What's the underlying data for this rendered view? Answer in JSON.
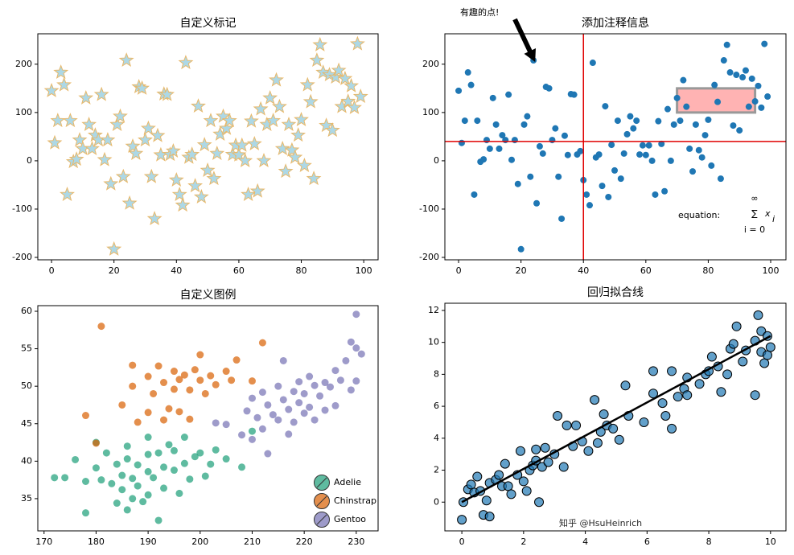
{
  "chart_data": [
    {
      "type": "scatter",
      "title": "自定义标记",
      "marker": "star",
      "xlim": [
        -4.4,
        104.6
      ],
      "ylim": [
        -205,
        263
      ],
      "xticks": [
        0,
        20,
        40,
        60,
        80,
        100
      ],
      "yticks": [
        -200,
        -100,
        0,
        100,
        200
      ],
      "series": [
        {
          "color": "#add8e6",
          "edgecolor": "#e8b86a",
          "alpha": 1,
          "x": [
            0,
            1,
            2,
            3,
            4,
            5,
            6,
            7,
            8,
            9,
            10,
            11,
            12,
            13,
            14,
            15,
            16,
            17,
            18,
            19,
            20,
            21,
            22,
            23,
            24,
            25,
            26,
            27,
            28,
            29,
            30,
            31,
            32,
            33,
            34,
            35,
            36,
            37,
            38,
            39,
            40,
            41,
            42,
            43,
            44,
            45,
            46,
            47,
            48,
            49,
            50,
            51,
            52,
            53,
            54,
            55,
            56,
            57,
            58,
            59,
            60,
            61,
            62,
            63,
            64,
            65,
            66,
            67,
            68,
            69,
            70,
            71,
            72,
            73,
            74,
            75,
            76,
            77,
            78,
            79,
            80,
            81,
            82,
            83,
            84,
            85,
            86,
            87,
            88,
            89,
            90,
            91,
            92,
            93,
            94,
            95,
            96,
            97,
            98,
            99
          ],
          "values": [
            145,
            37,
            83,
            183,
            157,
            -70,
            83,
            -2,
            3,
            43,
            25,
            130,
            75,
            25,
            53,
            43,
            137,
            2,
            43,
            -48,
            -183,
            75,
            92,
            -33,
            208,
            -88,
            30,
            15,
            153,
            150,
            43,
            67,
            -33,
            -120,
            52,
            12,
            138,
            137,
            13,
            20,
            -40,
            -70,
            -92,
            203,
            7,
            13,
            -52,
            113,
            -75,
            33,
            -20,
            83,
            -37,
            15,
            55,
            92,
            67,
            83,
            13,
            32,
            12,
            32,
            0,
            -70,
            82,
            35,
            -63,
            107,
            0,
            75,
            130,
            83,
            167,
            112,
            25,
            -22,
            75,
            22,
            7,
            53,
            85,
            -10,
            157,
            122,
            -37,
            208,
            240,
            183,
            73,
            178,
            63,
            173,
            187,
            112,
            170,
            123,
            155,
            110,
            242,
            133
          ]
        }
      ]
    },
    {
      "type": "scatter",
      "title": "添加注释信息",
      "marker": "circle",
      "xlim": [
        -4.4,
        104.9
      ],
      "ylim": [
        -205,
        263
      ],
      "xticks": [
        0,
        20,
        40,
        60,
        80,
        100
      ],
      "yticks": [
        -200,
        -100,
        0,
        100,
        200
      ],
      "series": [
        {
          "color": "#1f77b4",
          "alpha": 1,
          "x": [
            0,
            1,
            2,
            3,
            4,
            5,
            6,
            7,
            8,
            9,
            10,
            11,
            12,
            13,
            14,
            15,
            16,
            17,
            18,
            19,
            20,
            21,
            22,
            23,
            24,
            25,
            26,
            27,
            28,
            29,
            30,
            31,
            32,
            33,
            34,
            35,
            36,
            37,
            38,
            39,
            40,
            41,
            42,
            43,
            44,
            45,
            46,
            47,
            48,
            49,
            50,
            51,
            52,
            53,
            54,
            55,
            56,
            57,
            58,
            59,
            60,
            61,
            62,
            63,
            64,
            65,
            66,
            67,
            68,
            69,
            70,
            71,
            72,
            73,
            74,
            75,
            76,
            77,
            78,
            79,
            80,
            81,
            82,
            83,
            84,
            85,
            86,
            87,
            88,
            89,
            90,
            91,
            92,
            93,
            94,
            95,
            96,
            97,
            98,
            99
          ],
          "values": [
            145,
            37,
            83,
            183,
            157,
            -70,
            83,
            -2,
            3,
            43,
            25,
            130,
            75,
            25,
            53,
            43,
            137,
            2,
            43,
            -48,
            -183,
            75,
            92,
            -33,
            208,
            -88,
            30,
            15,
            153,
            150,
            43,
            67,
            -33,
            -120,
            52,
            12,
            138,
            137,
            13,
            20,
            -40,
            -70,
            -92,
            203,
            7,
            13,
            -52,
            113,
            -75,
            33,
            -20,
            83,
            -37,
            15,
            55,
            92,
            67,
            83,
            13,
            32,
            12,
            32,
            0,
            -70,
            82,
            35,
            -63,
            107,
            0,
            75,
            130,
            83,
            167,
            112,
            25,
            -22,
            75,
            22,
            7,
            53,
            85,
            -10,
            157,
            122,
            -37,
            208,
            240,
            183,
            73,
            178,
            63,
            173,
            187,
            112,
            170,
            123,
            155,
            110,
            242,
            133
          ]
        }
      ],
      "vlines": [
        40
      ],
      "hlines": [
        40
      ],
      "line_color": "#e00000",
      "rect": {
        "x": 70,
        "y": 100,
        "width": 25,
        "height": 50,
        "facecolor": "#ffb3b3",
        "edgecolor": "#999999"
      },
      "annotation": {
        "text": "有趣的点!",
        "x": 24,
        "y": 208
      },
      "equation": {
        "prefix": "equation:",
        "symbol": "∑",
        "upper": "∞",
        "lower": "i = 0",
        "term": "x",
        "index": "i"
      }
    },
    {
      "type": "scatter",
      "title": "自定义图例",
      "marker": "circle",
      "legend": "lower right",
      "xlim": [
        168.8,
        234.2
      ],
      "ylim": [
        30.7,
        60.75
      ],
      "xticks": [
        170,
        180,
        190,
        200,
        210,
        220,
        230
      ],
      "yticks": [
        35,
        40,
        45,
        50,
        55,
        60
      ],
      "series": [
        {
          "name": "Adelie",
          "color": "#1b9e77",
          "alpha": 0.7,
          "x": [
            172,
            174,
            176,
            178,
            178,
            180,
            180,
            181,
            182,
            183,
            184,
            184,
            185,
            185,
            186,
            186,
            187,
            187,
            188,
            188,
            189,
            190,
            190,
            190,
            191,
            192,
            192,
            193,
            193,
            194,
            195,
            195,
            196,
            197,
            197,
            198,
            199,
            200,
            201,
            202,
            203,
            205,
            208,
            210,
            190,
            186
          ],
          "values": [
            37.8,
            37.8,
            40.2,
            33.1,
            37.3,
            39.1,
            42.5,
            37.5,
            41.1,
            37.0,
            39.6,
            34.4,
            38.1,
            36.2,
            40.3,
            42.0,
            37.7,
            35.0,
            39.5,
            36.7,
            34.6,
            38.6,
            40.9,
            35.5,
            37.8,
            41.1,
            32.1,
            39.2,
            36.4,
            42.2,
            38.8,
            41.4,
            35.7,
            39.7,
            43.2,
            37.6,
            40.6,
            41.1,
            38.0,
            39.6,
            41.5,
            40.3,
            39.2,
            44.0,
            43.2,
            33.5
          ]
        },
        {
          "name": "Chinstrap",
          "color": "#d95f02",
          "alpha": 0.7,
          "x": [
            178,
            180,
            181,
            185,
            187,
            188,
            190,
            190,
            191,
            192,
            193,
            193,
            194,
            195,
            195,
            196,
            196,
            197,
            198,
            198,
            199,
            200,
            200,
            201,
            202,
            203,
            205,
            206,
            207,
            210,
            212,
            187
          ],
          "values": [
            46.1,
            42.4,
            58.0,
            47.5,
            50.0,
            45.2,
            46.5,
            51.3,
            49.0,
            52.7,
            45.5,
            50.5,
            47.0,
            49.6,
            52.0,
            46.6,
            50.9,
            51.5,
            49.5,
            45.6,
            52.2,
            50.8,
            54.2,
            49.0,
            51.4,
            50.2,
            52.0,
            50.8,
            53.5,
            50.7,
            55.8,
            52.8
          ]
        },
        {
          "name": "Gentoo",
          "color": "#7570b3",
          "alpha": 0.7,
          "x": [
            203,
            208,
            209,
            210,
            210,
            211,
            212,
            212,
            213,
            214,
            215,
            215,
            216,
            217,
            217,
            218,
            218,
            219,
            219,
            220,
            220,
            221,
            221,
            222,
            222,
            223,
            224,
            224,
            225,
            226,
            226,
            227,
            228,
            229,
            229,
            230,
            230,
            231,
            230,
            216,
            205,
            213
          ],
          "values": [
            45.1,
            43.5,
            46.7,
            48.4,
            42.9,
            45.8,
            49.2,
            44.3,
            47.5,
            46.2,
            50.0,
            45.5,
            48.2,
            43.6,
            46.9,
            49.3,
            45.2,
            47.8,
            50.6,
            46.4,
            49.0,
            51.3,
            47.2,
            50.1,
            45.5,
            48.7,
            50.5,
            46.8,
            49.9,
            52.1,
            47.4,
            50.8,
            53.4,
            49.5,
            55.9,
            50.7,
            59.6,
            54.3,
            55.1,
            53.4,
            44.9,
            41.0
          ]
        }
      ]
    },
    {
      "type": "scatter",
      "title": "回归拟合线",
      "marker": "circle",
      "xlim": [
        -0.55,
        10.5
      ],
      "ylim": [
        -1.8,
        12.45
      ],
      "xticks": [
        0,
        2,
        4,
        6,
        8,
        10
      ],
      "yticks": [
        0,
        2,
        4,
        6,
        8,
        10,
        12
      ],
      "series": [
        {
          "color": "#1f77b4",
          "edgecolor": "#000000",
          "alpha": 0.7,
          "x": [
            0,
            0.05,
            0.2,
            0.3,
            0.4,
            0.5,
            0.6,
            0.7,
            0.8,
            0.9,
            0.9,
            1.1,
            1.2,
            1.3,
            1.4,
            1.5,
            1.6,
            1.8,
            1.9,
            2.0,
            2.1,
            2.2,
            2.3,
            2.4,
            2.4,
            2.5,
            2.6,
            2.7,
            2.8,
            3.0,
            3.1,
            3.3,
            3.4,
            3.6,
            3.7,
            3.9,
            4.1,
            4.3,
            4.4,
            4.5,
            4.6,
            4.7,
            4.9,
            5.1,
            5.3,
            5.4,
            5.9,
            6.2,
            6.2,
            6.5,
            6.6,
            6.8,
            6.8,
            7.0,
            7.2,
            7.3,
            7.3,
            7.7,
            7.9,
            8.0,
            8.1,
            8.3,
            8.4,
            8.6,
            8.7,
            8.8,
            8.9,
            9.1,
            9.2,
            9.5,
            9.6,
            9.7,
            9.7,
            9.8,
            9.9,
            10.0,
            9.9,
            9.5
          ],
          "values": [
            -1.1,
            0,
            0.8,
            1.1,
            0.6,
            1.6,
            0.7,
            -0.8,
            0.1,
            -0.9,
            1.2,
            1.4,
            1.7,
            1.0,
            2.4,
            1.0,
            0.5,
            1.7,
            3.2,
            1.3,
            0.7,
            2.0,
            2.3,
            2.6,
            3.3,
            0.0,
            2.2,
            3.4,
            2.5,
            3.0,
            5.4,
            2.2,
            4.8,
            3.5,
            4.8,
            3.8,
            3.2,
            6.4,
            3.7,
            4.4,
            5.5,
            4.8,
            4.6,
            3.9,
            7.3,
            5.4,
            5.0,
            6.8,
            8.2,
            6.2,
            5.4,
            8.2,
            4.6,
            6.6,
            7.1,
            6.7,
            7.8,
            7.4,
            8.0,
            8.2,
            9.1,
            8.5,
            6.9,
            8.0,
            9.6,
            9.9,
            11.0,
            8.8,
            9.5,
            6.7,
            11.7,
            9.4,
            10.7,
            8.7,
            9.2,
            9.7,
            10.4,
            10.1
          ]
        }
      ],
      "fit": {
        "x": [
          0,
          10
        ],
        "values": [
          0,
          10.4
        ],
        "color": "#000000"
      }
    }
  ],
  "watermark": "知乎 @HsuHeinrich"
}
